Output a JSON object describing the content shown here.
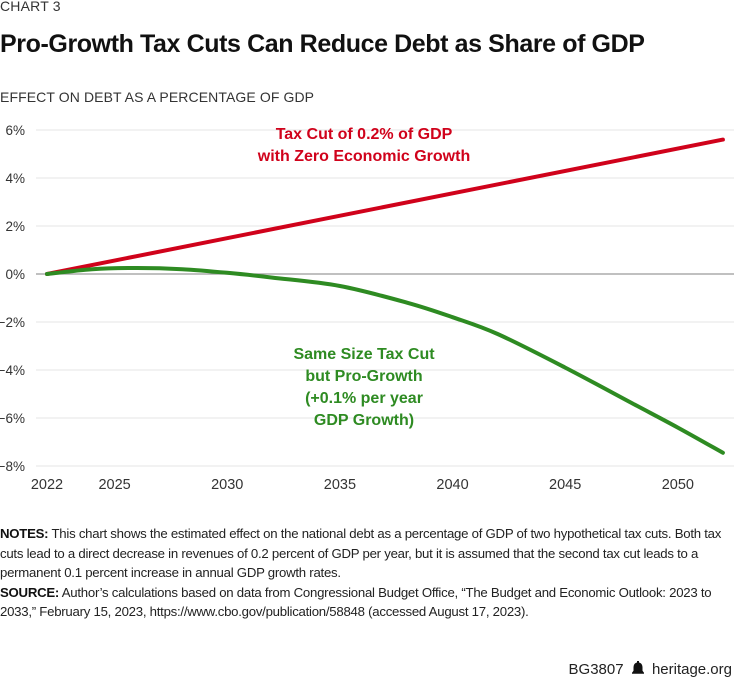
{
  "header": {
    "kicker": "CHART 3",
    "title": "Pro-Growth Tax Cuts Can Reduce Debt as Share of GDP"
  },
  "chart_data": {
    "type": "line",
    "title": "Pro-Growth Tax Cuts Can Reduce Debt as Share of GDP",
    "ylabel": "EFFECT ON DEBT AS A PERCENTAGE OF GDP",
    "xlabel": "",
    "xlim": [
      2022,
      2052
    ],
    "ylim": [
      -8,
      6
    ],
    "x_ticks": [
      2022,
      2025,
      2030,
      2035,
      2040,
      2045,
      2050
    ],
    "y_ticks": [
      6,
      4,
      2,
      0,
      -2,
      -4,
      -6,
      -8
    ],
    "y_tick_labels": [
      "6%",
      "4%",
      "2%",
      "0%",
      "−2%",
      "−4%",
      "−6%",
      "−8%"
    ],
    "grid": true,
    "series": [
      {
        "name": "Tax Cut of 0.2% of GDP with Zero Economic Growth",
        "label_lines": [
          "Tax Cut of 0.2% of GDP",
          "with Zero Economic Growth"
        ],
        "color": "#d0021b",
        "x": [
          2022,
          2052
        ],
        "values": [
          0,
          5.6
        ]
      },
      {
        "name": "Same Size Tax Cut but Pro-Growth (+0.1% per year GDP Growth)",
        "label_lines": [
          "Same Size Tax Cut",
          "but Pro-Growth",
          "(+0.1% per year",
          "GDP Growth)"
        ],
        "color": "#2e8b22",
        "x": [
          2022,
          2024,
          2026,
          2028,
          2030,
          2032,
          2035,
          2038,
          2040,
          2042,
          2045,
          2048,
          2050,
          2052
        ],
        "values": [
          0,
          0.2,
          0.25,
          0.2,
          0.05,
          -0.15,
          -0.5,
          -1.2,
          -1.8,
          -2.5,
          -3.9,
          -5.4,
          -6.4,
          -7.45
        ]
      }
    ]
  },
  "notes": {
    "notes_label": "NOTES:",
    "notes_text": " This chart shows the estimated effect on the national debt as a percentage of GDP of two hypothetical tax cuts. Both tax cuts lead to a direct decrease in revenues of 0.2 percent of GDP per year, but it is assumed that the second tax cut leads to a permanent 0.1 percent increase in annual GDP growth rates.",
    "source_label": "SOURCE:",
    "source_text": " Author’s calculations based on data from Congressional Budget Office, “The Budget and Economic Outlook: 2023 to 2033,” February 15, 2023, https://www.cbo.gov/publication/58848 (accessed August 17, 2023)."
  },
  "footer": {
    "code": "BG3807",
    "icon": "liberty-bell-icon",
    "site": "heritage.org"
  }
}
